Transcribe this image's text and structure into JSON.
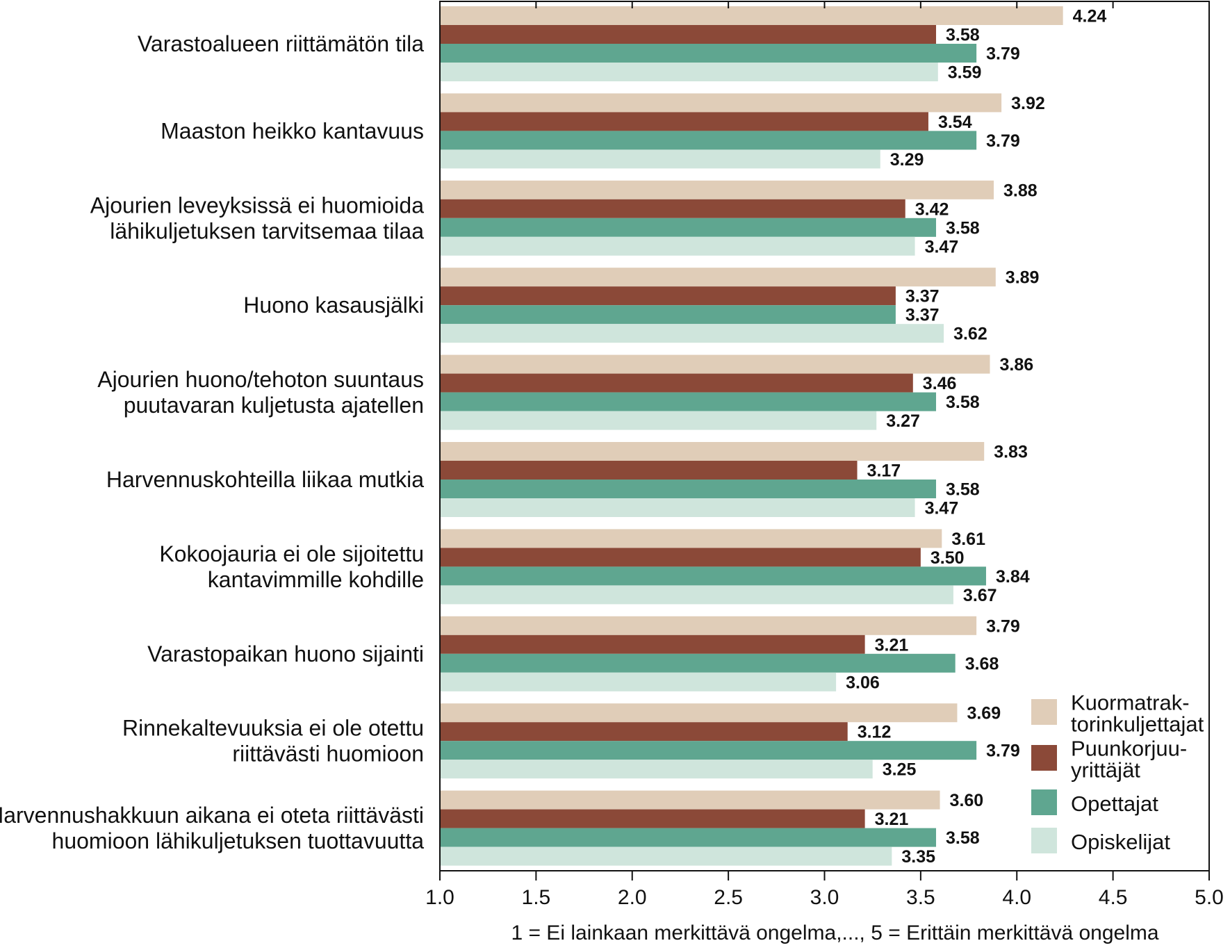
{
  "chart_data": {
    "type": "bar",
    "orientation": "horizontal",
    "title": "",
    "xlabel": "1 = Ei lainkaan merkittävä ongelma,..., 5 = Erittäin merkittävä ongelma",
    "ylabel": "",
    "xlim": [
      1.0,
      5.0
    ],
    "xticks": [
      "1.0",
      "1.5",
      "2.0",
      "2.5",
      "3.0",
      "3.5",
      "4.0",
      "4.5",
      "5.0"
    ],
    "grid": false,
    "legend_position": "bottom-right",
    "categories": [
      [
        "Varastoalueen riittämätön tila"
      ],
      [
        "Maaston heikko kantavuus"
      ],
      [
        "Ajourien leveyksissä ei huomioida",
        "lähikuljetuksen tarvitsemaa tilaa"
      ],
      [
        "Huono kasausjälki"
      ],
      [
        "Ajourien huono/tehoton suuntaus",
        "puutavaran kuljetusta ajatellen"
      ],
      [
        "Harvennuskohteilla liikaa mutkia"
      ],
      [
        "Kokoojauria ei ole sijoitettu",
        "kantavimmille kohdille"
      ],
      [
        "Varastopaikan huono sijainti"
      ],
      [
        "Rinnekaltevuuksia ei ole otettu",
        "riittävästi huomioon"
      ],
      [
        "Harvennushakkuun aikana ei oteta riittävästi",
        "huomioon lähikuljetuksen tuottavuutta"
      ]
    ],
    "series": [
      {
        "name": [
          "Kuormatrak-",
          "torinkuljettajat"
        ],
        "color": "#e0cdb8",
        "values": [
          4.24,
          3.92,
          3.88,
          3.89,
          3.86,
          3.83,
          3.61,
          3.79,
          3.69,
          3.6
        ],
        "labels": [
          "4.24",
          "3.92",
          "3.88",
          "3.89",
          "3.86",
          "3.83",
          "3.61",
          "3.79",
          "3.69",
          "3.60"
        ]
      },
      {
        "name": [
          "Puunkorjuu-",
          "yrittäjät"
        ],
        "color": "#8b4938",
        "values": [
          3.58,
          3.54,
          3.42,
          3.37,
          3.46,
          3.17,
          3.5,
          3.21,
          3.12,
          3.21
        ],
        "labels": [
          "3.58",
          "3.54",
          "3.42",
          "3.37",
          "3.46",
          "3.17",
          "3.50",
          "3.21",
          "3.12",
          "3.21"
        ]
      },
      {
        "name": [
          "Opettajat"
        ],
        "color": "#5fa690",
        "values": [
          3.79,
          3.79,
          3.58,
          3.37,
          3.58,
          3.58,
          3.84,
          3.68,
          3.79,
          3.58
        ],
        "labels": [
          "3.79",
          "3.79",
          "3.58",
          "3.37",
          "3.58",
          "3.58",
          "3.84",
          "3.68",
          "3.79",
          "3.58"
        ]
      },
      {
        "name": [
          "Opiskelijat"
        ],
        "color": "#cfe5dc",
        "values": [
          3.59,
          3.29,
          3.47,
          3.62,
          3.27,
          3.47,
          3.67,
          3.06,
          3.25,
          3.35
        ],
        "labels": [
          "3.59",
          "3.29",
          "3.47",
          "3.62",
          "3.27",
          "3.47",
          "3.67",
          "3.06",
          "3.25",
          "3.35"
        ]
      }
    ]
  }
}
